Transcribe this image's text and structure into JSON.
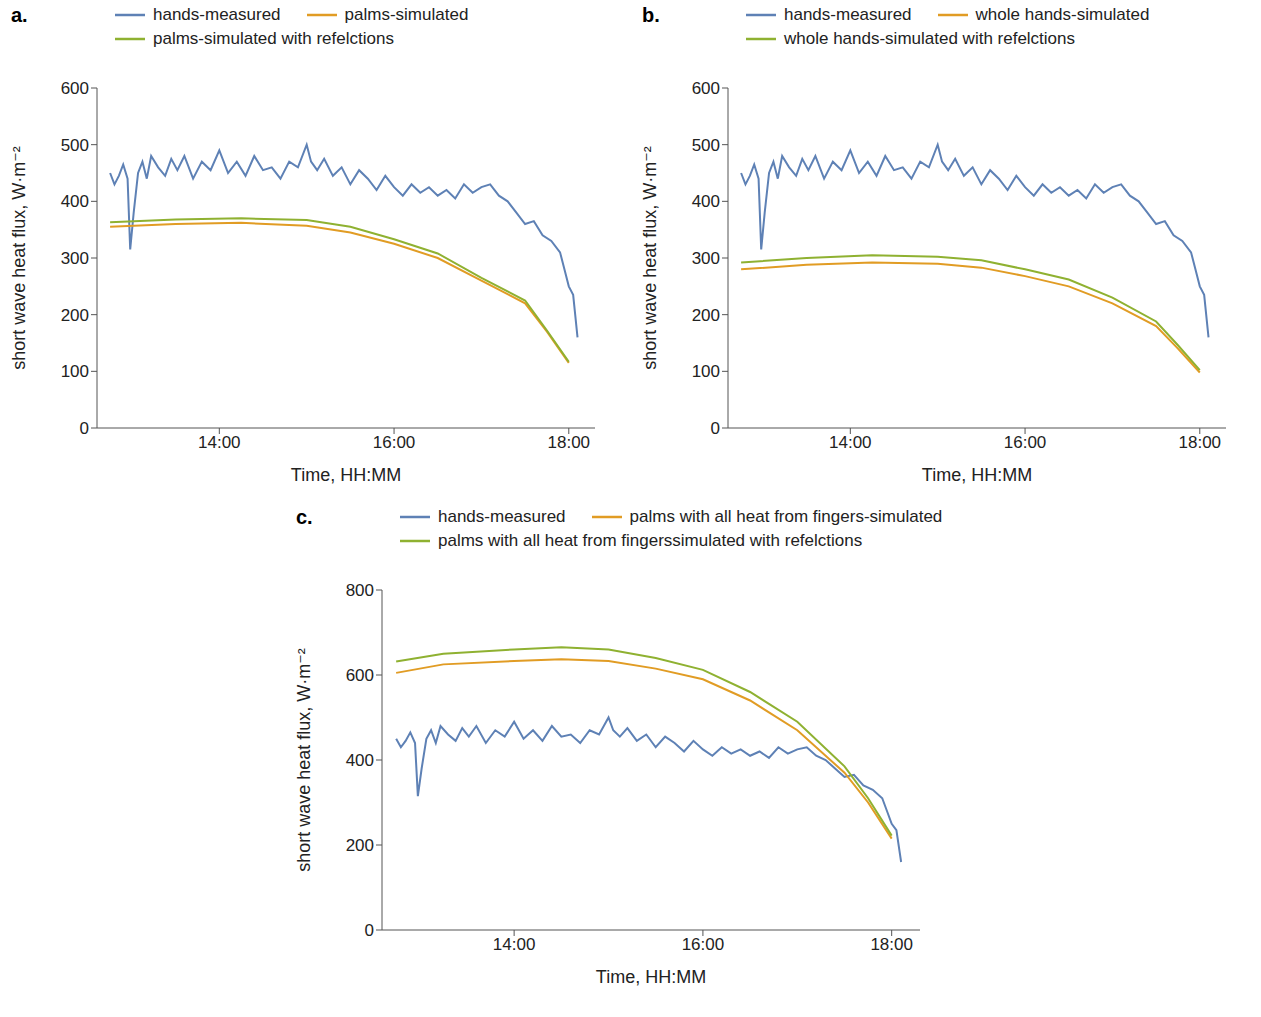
{
  "chart_data": [
    {
      "type": "line",
      "label": "a.",
      "x_label": "Time, HH:MM",
      "y_label": "short wave heat flux, W·m⁻²",
      "legend": "top",
      "xlim": [
        12.6,
        18.3
      ],
      "xticks": [
        {
          "value": 14,
          "label": "14:00"
        },
        {
          "value": 16,
          "label": "16:00"
        },
        {
          "value": 18,
          "label": "18:00"
        }
      ],
      "ylim": [
        0,
        600
      ],
      "yticks": [
        0,
        100,
        200,
        300,
        400,
        500,
        600
      ],
      "series": [
        {
          "name": "hands-measured",
          "color": "#5E81B5",
          "x": [
            12.75,
            12.8,
            12.85,
            12.9,
            12.95,
            12.98,
            13.02,
            13.07,
            13.12,
            13.17,
            13.22,
            13.3,
            13.38,
            13.45,
            13.52,
            13.6,
            13.7,
            13.8,
            13.9,
            14.0,
            14.1,
            14.2,
            14.3,
            14.4,
            14.5,
            14.6,
            14.7,
            14.8,
            14.9,
            15.0,
            15.05,
            15.12,
            15.2,
            15.3,
            15.4,
            15.5,
            15.6,
            15.7,
            15.8,
            15.9,
            16.0,
            16.1,
            16.2,
            16.3,
            16.4,
            16.5,
            16.6,
            16.7,
            16.8,
            16.9,
            17.0,
            17.1,
            17.2,
            17.3,
            17.4,
            17.5,
            17.6,
            17.7,
            17.8,
            17.9,
            17.95,
            18.0,
            18.05,
            18.1
          ],
          "values": [
            450,
            430,
            445,
            465,
            440,
            315,
            380,
            450,
            470,
            440,
            480,
            460,
            445,
            475,
            455,
            480,
            440,
            470,
            455,
            490,
            450,
            470,
            445,
            480,
            455,
            460,
            440,
            470,
            460,
            500,
            470,
            455,
            475,
            445,
            460,
            430,
            455,
            440,
            420,
            445,
            425,
            410,
            430,
            415,
            425,
            410,
            420,
            405,
            430,
            415,
            425,
            430,
            410,
            400,
            380,
            360,
            365,
            340,
            330,
            310,
            280,
            250,
            235,
            160
          ]
        },
        {
          "name": "palms-simulated",
          "color": "#E19C24",
          "x": [
            12.75,
            13.5,
            14.25,
            15,
            15.5,
            16,
            16.5,
            17,
            17.5,
            17.75,
            18.0
          ],
          "values": [
            355,
            360,
            362,
            357,
            345,
            325,
            300,
            260,
            220,
            170,
            115
          ]
        },
        {
          "name": "palms-simulated with refelctions",
          "color": "#8FB131",
          "x": [
            12.75,
            13.5,
            14.25,
            15,
            15.5,
            16,
            16.5,
            17,
            17.5,
            17.75,
            18.0
          ],
          "values": [
            363,
            368,
            370,
            367,
            355,
            333,
            308,
            265,
            225,
            172,
            117
          ]
        }
      ]
    },
    {
      "type": "line",
      "label": "b.",
      "x_label": "Time, HH:MM",
      "y_label": "short wave heat flux, W·m⁻²",
      "legend": "top",
      "xlim": [
        12.6,
        18.3
      ],
      "xticks": [
        {
          "value": 14,
          "label": "14:00"
        },
        {
          "value": 16,
          "label": "16:00"
        },
        {
          "value": 18,
          "label": "18:00"
        }
      ],
      "ylim": [
        0,
        600
      ],
      "yticks": [
        0,
        100,
        200,
        300,
        400,
        500,
        600
      ],
      "series": [
        {
          "name": "hands-measured",
          "color": "#5E81B5",
          "x": [
            12.75,
            12.8,
            12.85,
            12.9,
            12.95,
            12.98,
            13.02,
            13.07,
            13.12,
            13.17,
            13.22,
            13.3,
            13.38,
            13.45,
            13.52,
            13.6,
            13.7,
            13.8,
            13.9,
            14.0,
            14.1,
            14.2,
            14.3,
            14.4,
            14.5,
            14.6,
            14.7,
            14.8,
            14.9,
            15.0,
            15.05,
            15.12,
            15.2,
            15.3,
            15.4,
            15.5,
            15.6,
            15.7,
            15.8,
            15.9,
            16.0,
            16.1,
            16.2,
            16.3,
            16.4,
            16.5,
            16.6,
            16.7,
            16.8,
            16.9,
            17.0,
            17.1,
            17.2,
            17.3,
            17.4,
            17.5,
            17.6,
            17.7,
            17.8,
            17.9,
            17.95,
            18.0,
            18.05,
            18.1
          ],
          "values": [
            450,
            430,
            445,
            465,
            440,
            315,
            380,
            450,
            470,
            440,
            480,
            460,
            445,
            475,
            455,
            480,
            440,
            470,
            455,
            490,
            450,
            470,
            445,
            480,
            455,
            460,
            440,
            470,
            460,
            500,
            470,
            455,
            475,
            445,
            460,
            430,
            455,
            440,
            420,
            445,
            425,
            410,
            430,
            415,
            425,
            410,
            420,
            405,
            430,
            415,
            425,
            430,
            410,
            400,
            380,
            360,
            365,
            340,
            330,
            310,
            280,
            250,
            235,
            160
          ]
        },
        {
          "name": "whole hands-simulated",
          "color": "#E19C24",
          "x": [
            12.75,
            13.5,
            14.25,
            15,
            15.5,
            16,
            16.5,
            17,
            17.5,
            17.75,
            18.0
          ],
          "values": [
            280,
            288,
            292,
            290,
            283,
            268,
            250,
            220,
            180,
            140,
            98
          ]
        },
        {
          "name": "whole hands-simulated with refelctions",
          "color": "#8FB131",
          "x": [
            12.75,
            13.5,
            14.25,
            15,
            15.5,
            16,
            16.5,
            17,
            17.5,
            17.75,
            18.0
          ],
          "values": [
            292,
            300,
            305,
            302,
            296,
            280,
            262,
            230,
            188,
            146,
            102
          ]
        }
      ]
    },
    {
      "type": "line",
      "label": "c.",
      "x_label": "Time, HH:MM",
      "y_label": "short wave heat flux, W·m⁻²",
      "legend": "top",
      "xlim": [
        12.6,
        18.3
      ],
      "xticks": [
        {
          "value": 14,
          "label": "14:00"
        },
        {
          "value": 16,
          "label": "16:00"
        },
        {
          "value": 18,
          "label": "18:00"
        }
      ],
      "ylim": [
        0,
        800
      ],
      "yticks": [
        0,
        200,
        400,
        600,
        800
      ],
      "series": [
        {
          "name": "hands-measured",
          "color": "#5E81B5",
          "x": [
            12.75,
            12.8,
            12.85,
            12.9,
            12.95,
            12.98,
            13.02,
            13.07,
            13.12,
            13.17,
            13.22,
            13.3,
            13.38,
            13.45,
            13.52,
            13.6,
            13.7,
            13.8,
            13.9,
            14.0,
            14.1,
            14.2,
            14.3,
            14.4,
            14.5,
            14.6,
            14.7,
            14.8,
            14.9,
            15.0,
            15.05,
            15.12,
            15.2,
            15.3,
            15.4,
            15.5,
            15.6,
            15.7,
            15.8,
            15.9,
            16.0,
            16.1,
            16.2,
            16.3,
            16.4,
            16.5,
            16.6,
            16.7,
            16.8,
            16.9,
            17.0,
            17.1,
            17.2,
            17.3,
            17.4,
            17.5,
            17.6,
            17.7,
            17.8,
            17.9,
            17.95,
            18.0,
            18.05,
            18.1
          ],
          "values": [
            450,
            430,
            445,
            465,
            440,
            315,
            380,
            450,
            470,
            440,
            480,
            460,
            445,
            475,
            455,
            480,
            440,
            470,
            455,
            490,
            450,
            470,
            445,
            480,
            455,
            460,
            440,
            470,
            460,
            500,
            470,
            455,
            475,
            445,
            460,
            430,
            455,
            440,
            420,
            445,
            425,
            410,
            430,
            415,
            425,
            410,
            420,
            405,
            430,
            415,
            425,
            430,
            410,
            400,
            380,
            360,
            365,
            340,
            330,
            310,
            280,
            250,
            235,
            160
          ]
        },
        {
          "name": "palms with all heat from fingers-simulated",
          "color": "#E19C24",
          "x": [
            12.75,
            13.25,
            14,
            14.5,
            15,
            15.5,
            16,
            16.5,
            17,
            17.5,
            17.75,
            18.0
          ],
          "values": [
            605,
            625,
            633,
            637,
            633,
            615,
            590,
            540,
            470,
            370,
            300,
            215
          ]
        },
        {
          "name": "palms with all heat from fingerssimulated with refelctions",
          "color": "#8FB131",
          "x": [
            12.75,
            13.25,
            14,
            14.5,
            15,
            15.5,
            16,
            16.5,
            17,
            17.5,
            17.75,
            18.0
          ],
          "values": [
            632,
            650,
            660,
            665,
            660,
            640,
            612,
            560,
            490,
            385,
            310,
            222
          ]
        }
      ]
    }
  ]
}
